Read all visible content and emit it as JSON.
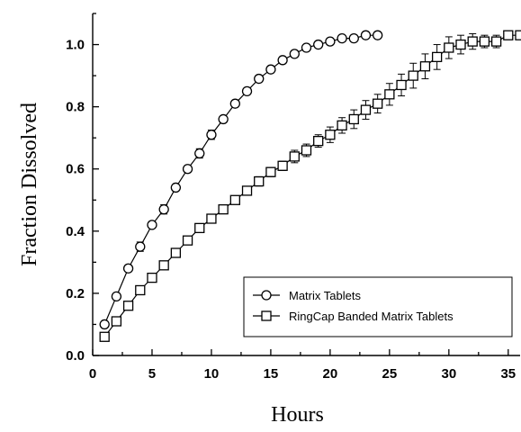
{
  "chart_data": {
    "type": "line",
    "xlabel": "Hours",
    "ylabel": "Fraction Dissolved",
    "xlim": [
      0,
      36
    ],
    "ylim": [
      0,
      1.1
    ],
    "x_ticks": [
      0,
      5,
      10,
      15,
      20,
      25,
      30,
      35
    ],
    "y_ticks": [
      0.0,
      0.2,
      0.4,
      0.6,
      0.8,
      1.0
    ],
    "y_tick_labels": [
      "0.0",
      "0.2",
      "0.4",
      "0.6",
      "0.8",
      "1.0"
    ],
    "grid": false,
    "legend_position": "bottom-right",
    "series": [
      {
        "name": "Matrix Tablets",
        "marker": "circle",
        "x": [
          1,
          2,
          3,
          4,
          5,
          6,
          7,
          8,
          9,
          10,
          11,
          12,
          13,
          14,
          15,
          16,
          17,
          18,
          19,
          20,
          21,
          22,
          23,
          24
        ],
        "y": [
          0.1,
          0.19,
          0.28,
          0.35,
          0.42,
          0.47,
          0.54,
          0.6,
          0.65,
          0.71,
          0.76,
          0.81,
          0.85,
          0.89,
          0.92,
          0.95,
          0.97,
          0.99,
          1.0,
          1.01,
          1.02,
          1.02,
          1.03,
          1.03
        ],
        "error": [
          0.01,
          0.01,
          0.01,
          0.015,
          0.01,
          0.015,
          0.01,
          0.01,
          0.015,
          0.015,
          0.01,
          0.01,
          0.01,
          0.01,
          0.01,
          0.01,
          0.01,
          0.01,
          0.01,
          0.01,
          0.01,
          0.01,
          0.01,
          0.01
        ]
      },
      {
        "name": "RingCap Banded Matrix Tablets",
        "marker": "square",
        "x": [
          1,
          2,
          3,
          4,
          5,
          6,
          7,
          8,
          9,
          10,
          11,
          12,
          13,
          14,
          15,
          16,
          17,
          18,
          19,
          20,
          21,
          22,
          23,
          24,
          25,
          26,
          27,
          28,
          29,
          30,
          31,
          32,
          33,
          34,
          35,
          36
        ],
        "y": [
          0.06,
          0.11,
          0.16,
          0.21,
          0.25,
          0.29,
          0.33,
          0.37,
          0.41,
          0.44,
          0.47,
          0.5,
          0.53,
          0.56,
          0.59,
          0.61,
          0.64,
          0.66,
          0.69,
          0.71,
          0.74,
          0.76,
          0.79,
          0.81,
          0.84,
          0.87,
          0.9,
          0.93,
          0.96,
          0.99,
          1.0,
          1.01,
          1.01,
          1.01,
          1.03,
          1.03
        ],
        "error": [
          0.005,
          0.005,
          0.008,
          0.008,
          0.01,
          0.01,
          0.01,
          0.01,
          0.01,
          0.01,
          0.012,
          0.012,
          0.012,
          0.015,
          0.015,
          0.015,
          0.02,
          0.02,
          0.02,
          0.025,
          0.025,
          0.03,
          0.03,
          0.03,
          0.035,
          0.035,
          0.04,
          0.04,
          0.04,
          0.035,
          0.03,
          0.025,
          0.02,
          0.02,
          0.01,
          0.01
        ]
      }
    ]
  }
}
